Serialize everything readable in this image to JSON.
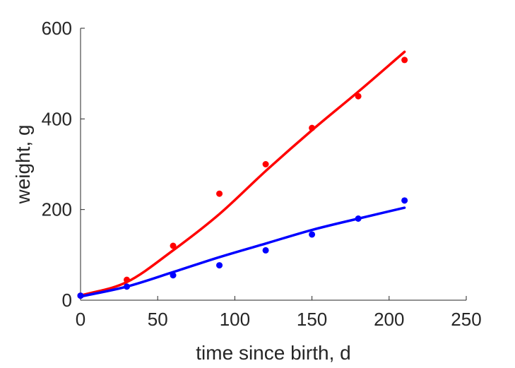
{
  "chart_data": {
    "type": "scatter",
    "title": "",
    "xlabel": "time since birth, d",
    "ylabel": "weight, g",
    "xlim": [
      0,
      250
    ],
    "ylim": [
      0,
      600
    ],
    "xticks": [
      0,
      50,
      100,
      150,
      200,
      250
    ],
    "yticks": [
      0,
      200,
      400,
      600
    ],
    "grid": false,
    "legend": "none",
    "series": [
      {
        "color": "#ff0000",
        "points": {
          "x": [
            0,
            30,
            60,
            90,
            120,
            150,
            180,
            210
          ],
          "y": [
            10,
            45,
            120,
            235,
            300,
            380,
            450,
            530
          ]
        },
        "fit": {
          "x": [
            0,
            30,
            60,
            90,
            120,
            150,
            180,
            210
          ],
          "y": [
            10,
            40,
            110,
            190,
            285,
            375,
            460,
            548
          ]
        }
      },
      {
        "color": "#0000ff",
        "points": {
          "x": [
            0,
            30,
            60,
            90,
            120,
            150,
            180,
            210
          ],
          "y": [
            10,
            30,
            55,
            77,
            110,
            145,
            180,
            220
          ]
        },
        "fit": {
          "x": [
            0,
            30,
            60,
            90,
            120,
            150,
            180,
            210
          ],
          "y": [
            8,
            30,
            62,
            95,
            125,
            155,
            180,
            204
          ]
        }
      }
    ]
  }
}
